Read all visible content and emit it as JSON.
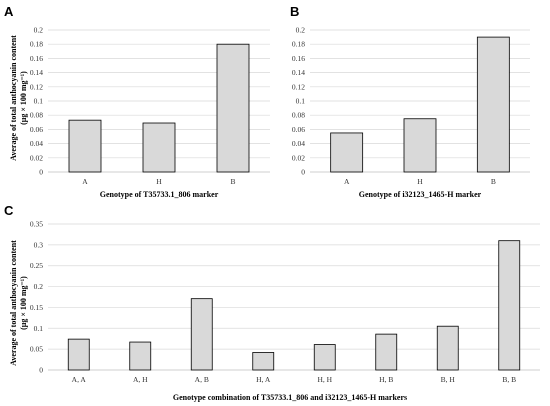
{
  "y_axis_label_line1": "Average of total anthocyanin content",
  "y_axis_label_line2": "(μg × 100 mg⁻¹)",
  "chart_data": [
    {
      "panel": "A",
      "type": "bar",
      "categories": [
        "A",
        "H",
        "B"
      ],
      "values": [
        0.073,
        0.069,
        0.18
      ],
      "xlabel": "Genotype of T35733.1_806 marker",
      "ylabel": "Average of total anthocyanin content (μg × 100 mg⁻¹)",
      "ylim": [
        0,
        0.2
      ],
      "yticks": [
        "0",
        "0.02",
        "0.04",
        "0.06",
        "0.08",
        "0.1",
        "0.12",
        "0.14",
        "0.16",
        "0.18",
        "0.2"
      ],
      "grid": true
    },
    {
      "panel": "B",
      "type": "bar",
      "categories": [
        "A",
        "H",
        "B"
      ],
      "values": [
        0.055,
        0.075,
        0.19
      ],
      "xlabel": "Genotype of i32123_1465-H marker",
      "ylabel": "",
      "ylim": [
        0,
        0.2
      ],
      "yticks": [
        "0",
        "0.02",
        "0.04",
        "0.06",
        "0.08",
        "0.1",
        "0.12",
        "0.14",
        "0.16",
        "0.18",
        "0.2"
      ],
      "grid": true
    },
    {
      "panel": "C",
      "type": "bar",
      "categories": [
        "A, A",
        "A, H",
        "A, B",
        "H, A",
        "H, H",
        "H, B",
        "B, H",
        "B, B"
      ],
      "values": [
        0.074,
        0.067,
        0.171,
        0.042,
        0.061,
        0.086,
        0.105,
        0.31
      ],
      "xlabel": "Genotype combination of T35733.1_806 and i32123_1465-H markers",
      "ylabel": "Average of total anthocyanin content (μg × 100 mg⁻¹)",
      "ylim": [
        0,
        0.35
      ],
      "yticks": [
        "0",
        "0.05",
        "0.1",
        "0.15",
        "0.2",
        "0.25",
        "0.3",
        "0.35"
      ],
      "grid": true
    }
  ]
}
